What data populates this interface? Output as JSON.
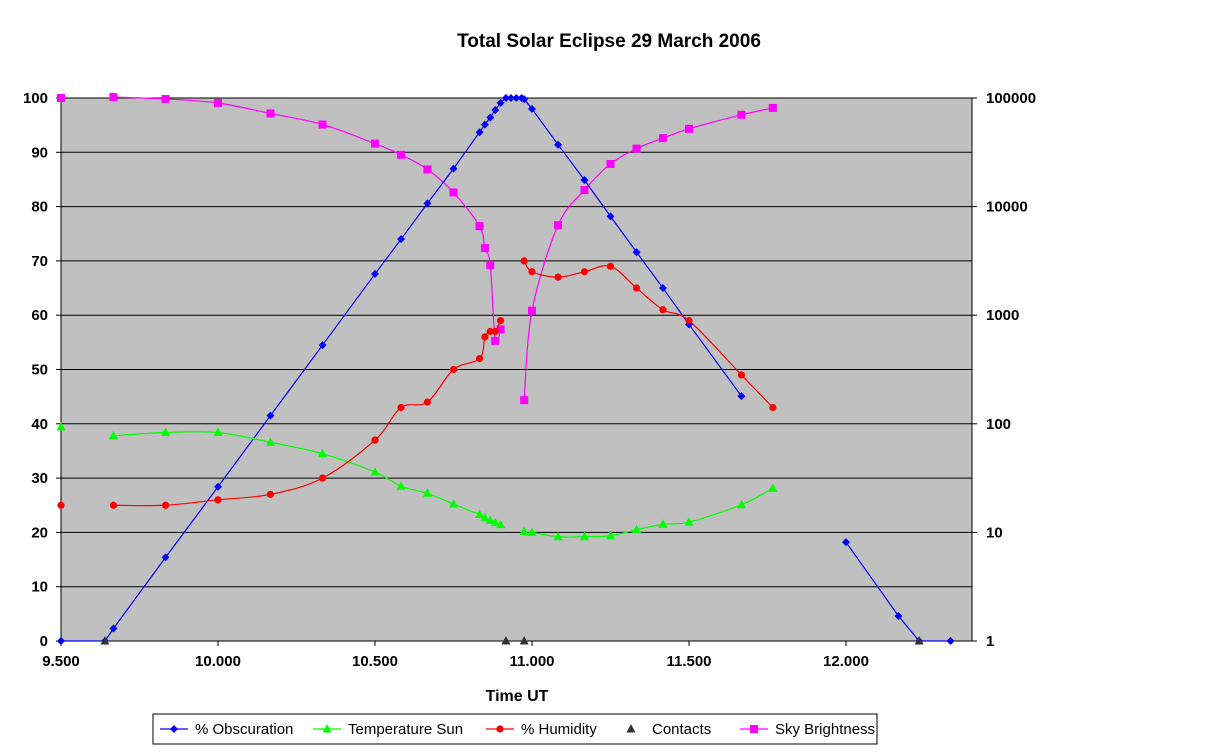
{
  "chart_data": {
    "type": "line",
    "title": "Total Solar Eclipse 29 March 2006",
    "xlabel": "Time UT",
    "ylabel": "",
    "y2label": "",
    "xlim": [
      9.5,
      12.4
    ],
    "ylim": [
      0,
      100
    ],
    "y2lim": [
      1,
      100000
    ],
    "y2_scale": "log",
    "grid": true,
    "plot_background": "#C0C0C0",
    "legend_position": "bottom",
    "x_ticks": [
      9.5,
      10.0,
      10.5,
      11.0,
      11.5,
      12.0
    ],
    "x_tick_labels": [
      "9.500",
      "10.000",
      "10.500",
      "11.000",
      "11.500",
      "12.000"
    ],
    "y_ticks": [
      0,
      10,
      20,
      30,
      40,
      50,
      60,
      70,
      80,
      90,
      100
    ],
    "y_tick_labels": [
      "0",
      "10",
      "20",
      "30",
      "40",
      "50",
      "60",
      "70",
      "80",
      "90",
      "100"
    ],
    "y2_ticks": [
      1,
      10,
      100,
      1000,
      10000,
      100000
    ],
    "y2_tick_labels": [
      "1",
      "10",
      "100",
      "1000",
      "10000",
      "100000"
    ],
    "series": [
      {
        "name": "% Obscuration",
        "color": "#0000FF",
        "marker": "diamond",
        "axis": "left",
        "segments": [
          [
            [
              9.5,
              0
            ],
            [
              9.64,
              0
            ],
            [
              9.667,
              2.3
            ],
            [
              9.833,
              15.4
            ],
            [
              10.0,
              28.4
            ],
            [
              10.167,
              41.5
            ],
            [
              10.333,
              54.5
            ],
            [
              10.5,
              67.6
            ],
            [
              10.583,
              74.0
            ],
            [
              10.667,
              80.6
            ],
            [
              10.75,
              87.0
            ],
            [
              10.833,
              93.7
            ],
            [
              10.85,
              95.1
            ],
            [
              10.867,
              96.4
            ],
            [
              10.883,
              97.8
            ],
            [
              10.9,
              99.1
            ],
            [
              10.917,
              100
            ],
            [
              10.933,
              100
            ],
            [
              10.95,
              100
            ],
            [
              10.967,
              100
            ],
            [
              10.975,
              99.8
            ],
            [
              11.0,
              98.0
            ],
            [
              11.083,
              91.4
            ],
            [
              11.167,
              84.9
            ],
            [
              11.25,
              78.2
            ],
            [
              11.333,
              71.6
            ],
            [
              11.417,
              65.0
            ],
            [
              11.5,
              58.3
            ],
            [
              11.667,
              45.1
            ]
          ],
          [
            [
              12.0,
              18.2
            ],
            [
              12.167,
              4.6
            ],
            [
              12.233,
              0
            ],
            [
              12.333,
              0
            ]
          ]
        ]
      },
      {
        "name": "Temperature Sun",
        "color": "#00FF00",
        "marker": "triangle",
        "axis": "left",
        "segments": [
          [
            [
              9.5,
              39.4
            ]
          ],
          [
            [
              9.667,
              37.8
            ],
            [
              9.833,
              38.4
            ],
            [
              10.0,
              38.4
            ],
            [
              10.167,
              36.6
            ],
            [
              10.333,
              34.5
            ],
            [
              10.5,
              31.1
            ],
            [
              10.583,
              28.5
            ],
            [
              10.667,
              27.2
            ],
            [
              10.75,
              25.2
            ],
            [
              10.833,
              23.3
            ],
            [
              10.85,
              22.7
            ],
            [
              10.867,
              22.2
            ],
            [
              10.883,
              21.8
            ],
            [
              10.9,
              21.4
            ]
          ],
          [
            [
              10.975,
              20.2
            ],
            [
              11.0,
              20.0
            ],
            [
              11.083,
              19.2
            ],
            [
              11.167,
              19.2
            ],
            [
              11.25,
              19.4
            ],
            [
              11.333,
              20.5
            ],
            [
              11.417,
              21.5
            ],
            [
              11.5,
              21.9
            ],
            [
              11.667,
              25.1
            ],
            [
              11.767,
              28.1
            ]
          ]
        ]
      },
      {
        "name": "% Humidity",
        "color": "#FF0000",
        "marker": "circle",
        "axis": "left",
        "segments": [
          [
            [
              9.5,
              25
            ]
          ],
          [
            [
              9.667,
              25
            ],
            [
              9.833,
              25
            ],
            [
              10.0,
              26
            ],
            [
              10.167,
              27
            ],
            [
              10.333,
              30
            ],
            [
              10.5,
              37
            ],
            [
              10.583,
              43
            ],
            [
              10.667,
              44
            ],
            [
              10.75,
              50
            ],
            [
              10.833,
              52
            ],
            [
              10.85,
              56
            ],
            [
              10.867,
              57
            ],
            [
              10.883,
              57
            ],
            [
              10.9,
              59
            ]
          ],
          [
            [
              10.975,
              70
            ],
            [
              11.0,
              68
            ],
            [
              11.083,
              67
            ],
            [
              11.167,
              68
            ],
            [
              11.25,
              69
            ],
            [
              11.333,
              65
            ],
            [
              11.417,
              61
            ],
            [
              11.5,
              59
            ],
            [
              11.667,
              49
            ],
            [
              11.767,
              43
            ]
          ]
        ]
      },
      {
        "name": "Contacts",
        "color": "#333333",
        "marker": "triangle",
        "axis": "left",
        "segments": [
          [
            [
              9.64,
              0
            ]
          ],
          [
            [
              10.917,
              0
            ]
          ],
          [
            [
              10.975,
              0
            ]
          ],
          [
            [
              12.233,
              0
            ]
          ]
        ]
      },
      {
        "name": "Sky Brightness",
        "color": "#FF00FF",
        "marker": "square",
        "axis": "right",
        "segments": [
          [
            [
              9.5,
              100000
            ]
          ],
          [
            [
              9.667,
              102000
            ],
            [
              9.833,
              98000
            ],
            [
              10.0,
              90000
            ],
            [
              10.167,
              72000
            ],
            [
              10.333,
              57000
            ],
            [
              10.5,
              38000
            ],
            [
              10.583,
              30000
            ],
            [
              10.667,
              22000
            ],
            [
              10.75,
              13500
            ],
            [
              10.833,
              6600
            ],
            [
              10.85,
              4150
            ],
            [
              10.867,
              2900
            ],
            [
              10.883,
              580
            ],
            [
              10.9,
              740
            ]
          ],
          [
            [
              10.975,
              165
            ],
            [
              11.0,
              1100
            ],
            [
              11.083,
              6750
            ],
            [
              11.167,
              14200
            ],
            [
              11.25,
              24700
            ],
            [
              11.333,
              34200
            ],
            [
              11.417,
              42700
            ],
            [
              11.5,
              52000
            ],
            [
              11.667,
              70000
            ],
            [
              11.767,
              81000
            ]
          ]
        ]
      }
    ]
  }
}
